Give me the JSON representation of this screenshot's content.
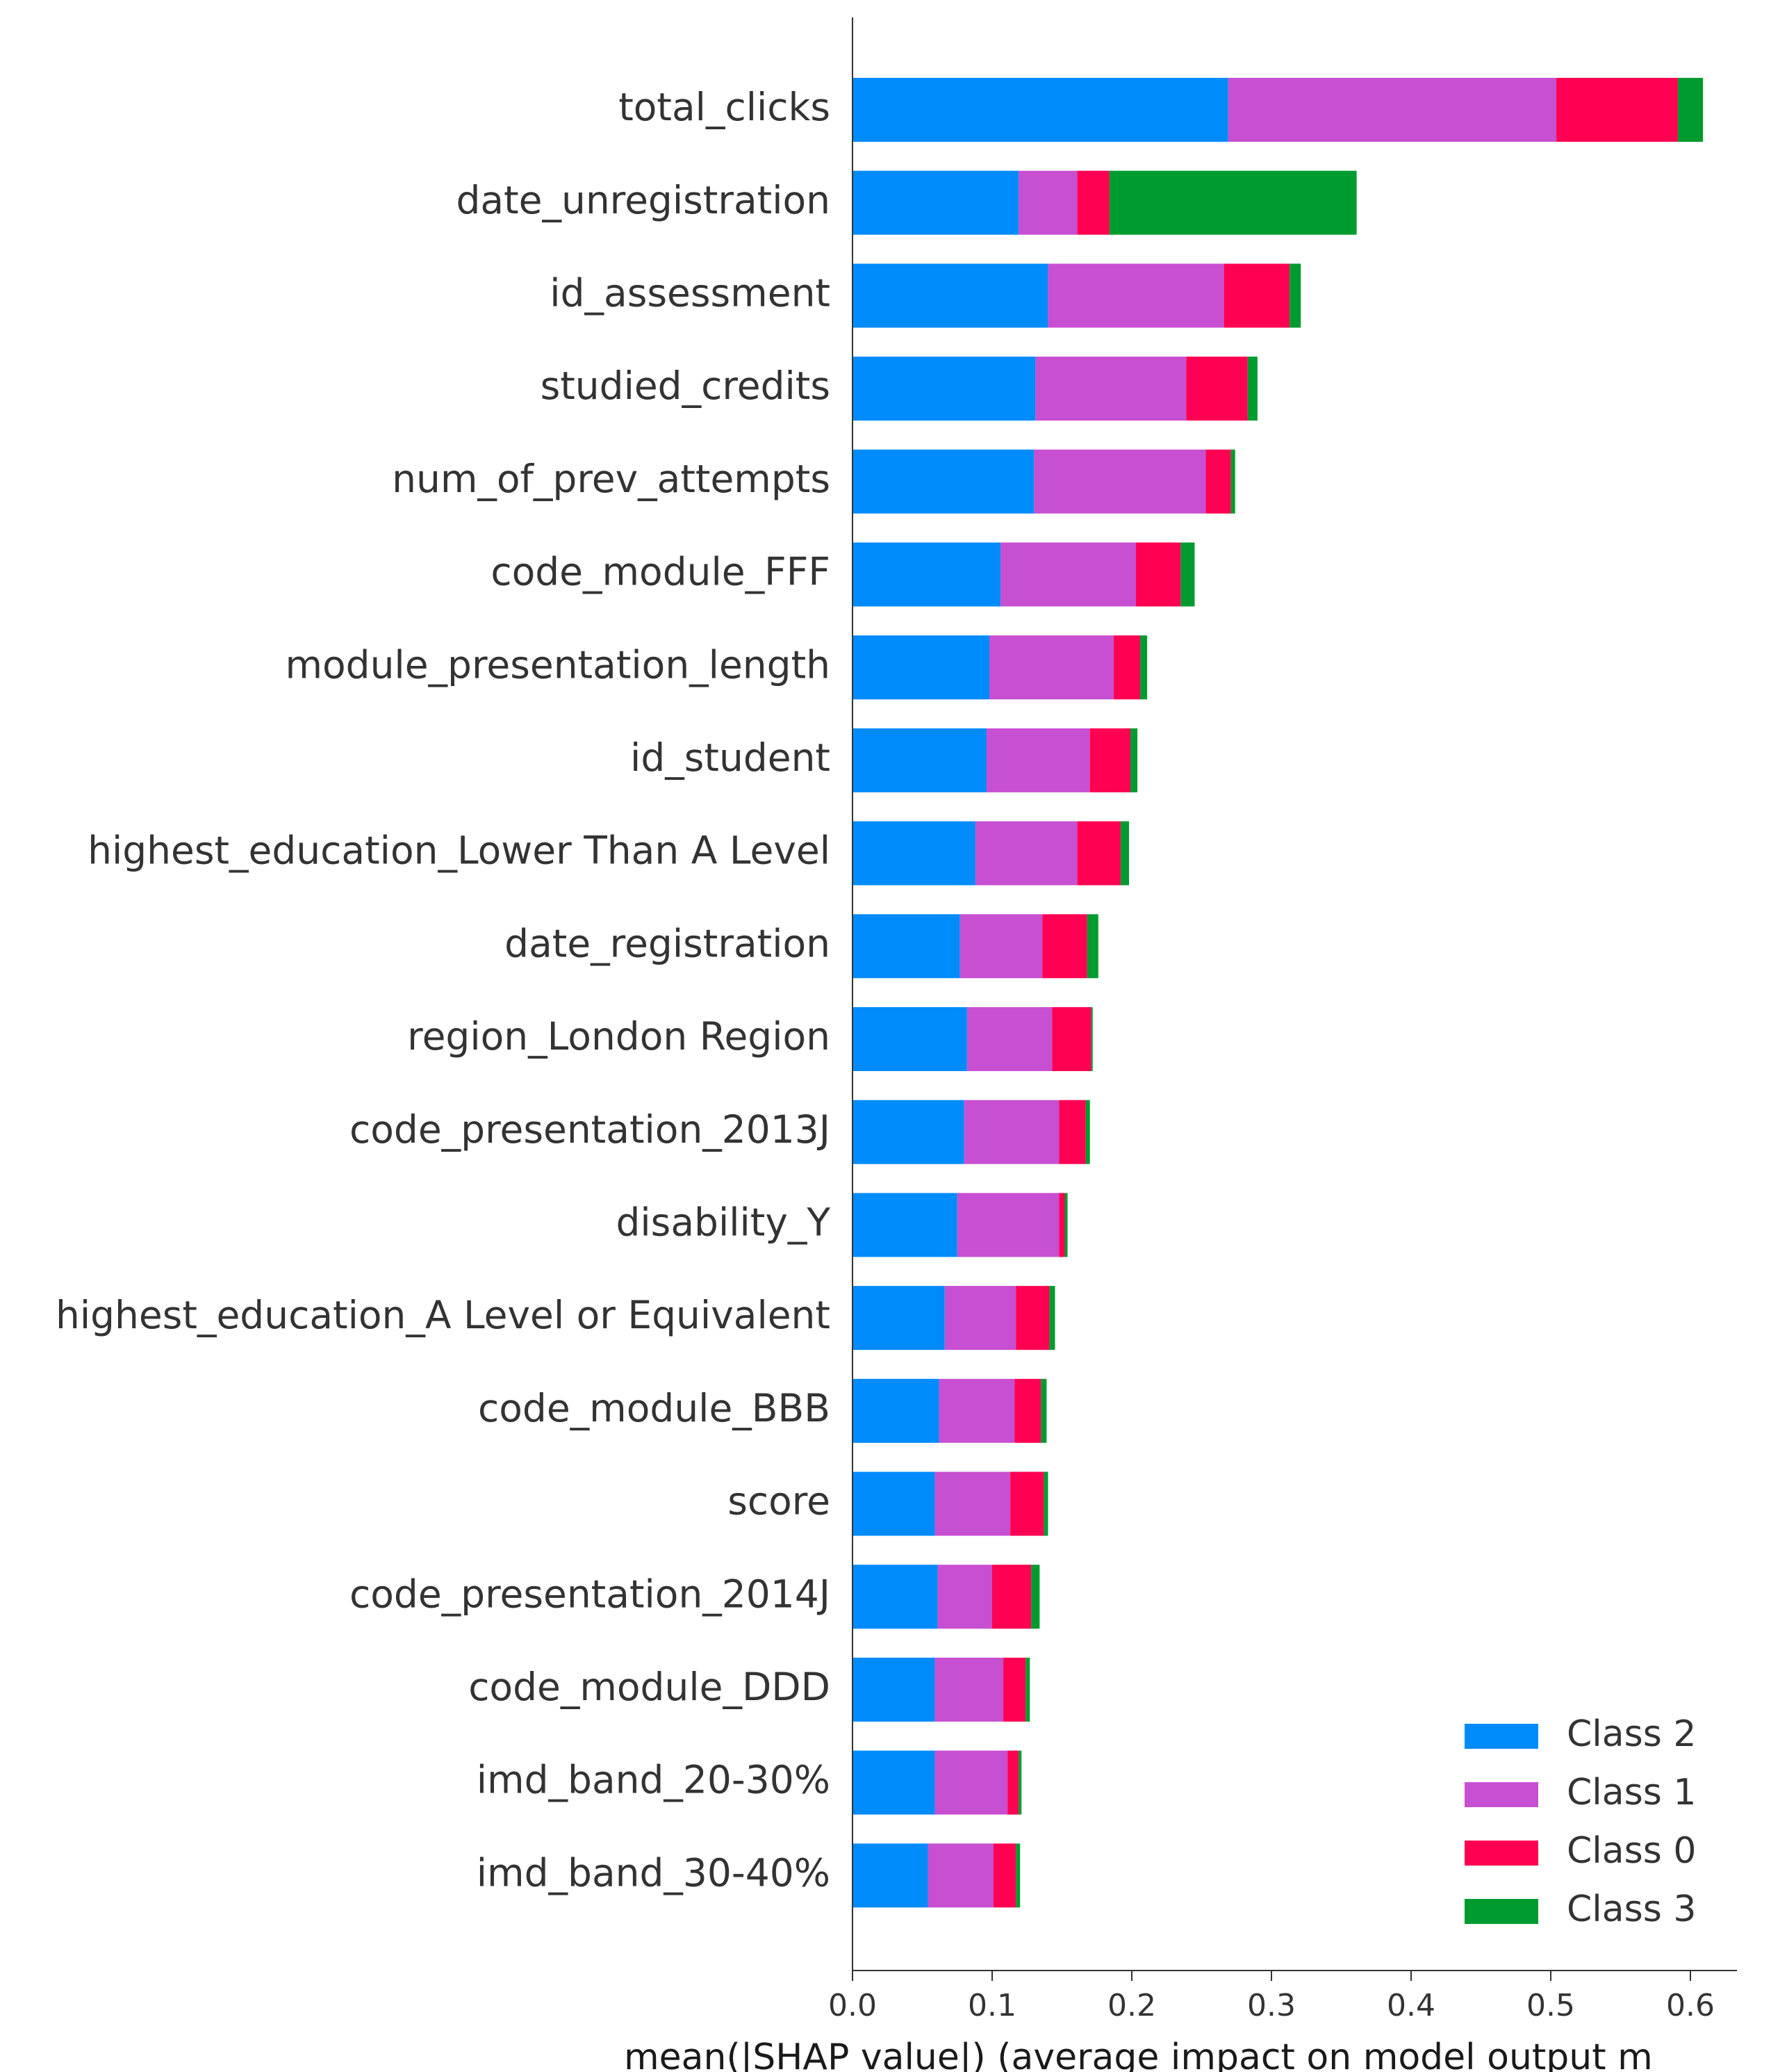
{
  "chart_data": {
    "type": "bar",
    "orientation": "horizontal",
    "stacked": true,
    "xlabel": "mean(|SHAP value|) (average impact on model output m",
    "xlim": [
      0.0,
      0.64
    ],
    "xticks": [
      "0.0",
      "0.1",
      "0.2",
      "0.3",
      "0.4",
      "0.5",
      "0.6"
    ],
    "categories": [
      "total_clicks",
      "date_unregistration",
      "id_assessment",
      "studied_credits",
      "num_of_prev_attempts",
      "code_module_FFF",
      "module_presentation_length",
      "id_student",
      "highest_education_Lower Than A Level",
      "date_registration",
      "region_London Region",
      "code_presentation_2013J",
      "disability_Y",
      "highest_education_A Level or Equivalent",
      "code_module_BBB",
      "score",
      "code_presentation_2014J",
      "code_module_DDD",
      "imd_band_20-30%",
      "imd_band_30-40%"
    ],
    "series": [
      {
        "name": "Class 2",
        "color": "#008bfb",
        "values": [
          0.269,
          0.119,
          0.14,
          0.131,
          0.13,
          0.106,
          0.098,
          0.096,
          0.088,
          0.077,
          0.082,
          0.08,
          0.075,
          0.066,
          0.062,
          0.059,
          0.061,
          0.059,
          0.059,
          0.054
        ]
      },
      {
        "name": "Class 1",
        "color": "#c74fd1",
        "values": [
          0.235,
          0.042,
          0.126,
          0.108,
          0.123,
          0.097,
          0.089,
          0.074,
          0.073,
          0.059,
          0.061,
          0.068,
          0.073,
          0.051,
          0.054,
          0.054,
          0.039,
          0.049,
          0.052,
          0.047
        ]
      },
      {
        "name": "Class 0",
        "color": "#ff0052",
        "values": [
          0.087,
          0.023,
          0.047,
          0.044,
          0.018,
          0.032,
          0.019,
          0.029,
          0.031,
          0.032,
          0.028,
          0.019,
          0.004,
          0.024,
          0.019,
          0.024,
          0.028,
          0.016,
          0.008,
          0.016
        ]
      },
      {
        "name": "Class 3",
        "color": "#009b2e",
        "values": [
          0.018,
          0.177,
          0.008,
          0.007,
          0.003,
          0.01,
          0.005,
          0.005,
          0.006,
          0.008,
          0.001,
          0.003,
          0.002,
          0.004,
          0.004,
          0.003,
          0.006,
          0.003,
          0.002,
          0.003
        ]
      }
    ],
    "legend": {
      "placement": "bottom-right",
      "order": [
        "Class 2",
        "Class 1",
        "Class 0",
        "Class 3"
      ]
    },
    "grid": false
  }
}
